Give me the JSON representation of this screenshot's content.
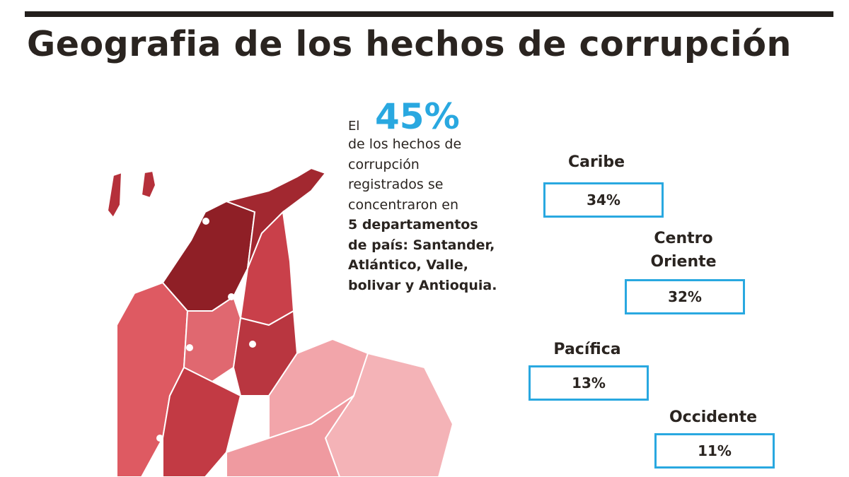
{
  "header": {
    "title": "Geografia de los hechos de corrupción"
  },
  "intro": {
    "lead": "El",
    "highlight": "45%",
    "lines": [
      "de los hechos de",
      "corrupción",
      "registrados se",
      "concentraron en"
    ],
    "bold_lines": [
      "5 departamentos",
      "de país: Santander,",
      "Atlántico, Valle,",
      "bolivar y Antioquia."
    ]
  },
  "regions": [
    {
      "name": "Caribe",
      "value": "34%"
    },
    {
      "name": "Centro Oriente",
      "value": "32%"
    },
    {
      "name": "Pacífica",
      "value": "13%"
    },
    {
      "name": "Occidente",
      "value": "11%"
    }
  ]
}
